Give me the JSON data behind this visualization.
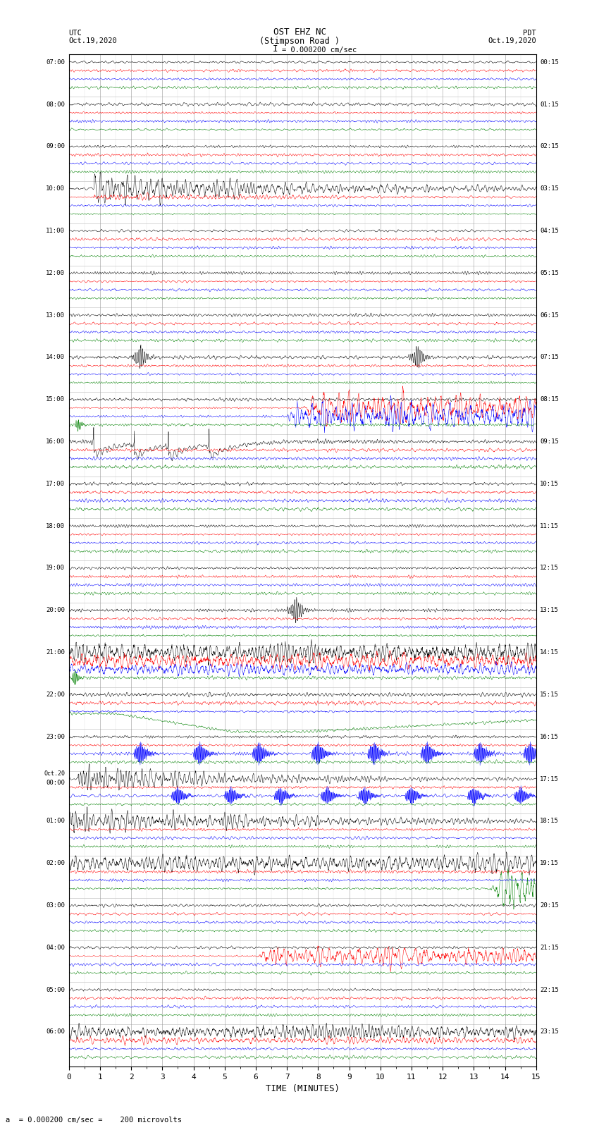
{
  "title_line1": "OST EHZ NC",
  "title_line2": "(Stimpson Road )",
  "title_scale": "I = 0.000200 cm/sec",
  "left_header_line1": "UTC",
  "left_header_line2": "Oct.19,2020",
  "right_header_line1": "PDT",
  "right_header_line2": "Oct.19,2020",
  "xlabel": "TIME (MINUTES)",
  "bottom_note": "= 0.000200 cm/sec =    200 microvolts",
  "xlim": [
    0,
    15
  ],
  "xticks": [
    0,
    1,
    2,
    3,
    4,
    5,
    6,
    7,
    8,
    9,
    10,
    11,
    12,
    13,
    14,
    15
  ],
  "bg_color": "#ffffff",
  "trace_colors": [
    "black",
    "red",
    "blue",
    "green"
  ],
  "grid_color": "#999999",
  "left_times_labels": [
    "07:00",
    "08:00",
    "09:00",
    "10:00",
    "11:00",
    "12:00",
    "13:00",
    "14:00",
    "15:00",
    "16:00",
    "17:00",
    "18:00",
    "19:00",
    "20:00",
    "21:00",
    "22:00",
    "23:00",
    "Oct.20\n00:00",
    "01:00",
    "02:00",
    "03:00",
    "04:00",
    "05:00",
    "06:00"
  ],
  "right_times_labels": [
    "00:15",
    "01:15",
    "02:15",
    "03:15",
    "04:15",
    "05:15",
    "06:15",
    "07:15",
    "08:15",
    "09:15",
    "10:15",
    "11:15",
    "12:15",
    "13:15",
    "14:15",
    "15:15",
    "16:15",
    "17:15",
    "18:15",
    "19:15",
    "20:15",
    "21:15",
    "22:15",
    "23:15"
  ],
  "n_hours": 24,
  "traces_per_hour": 4,
  "seed": 42,
  "fig_width": 8.5,
  "fig_height": 16.13,
  "dpi": 100,
  "lw": 0.35
}
